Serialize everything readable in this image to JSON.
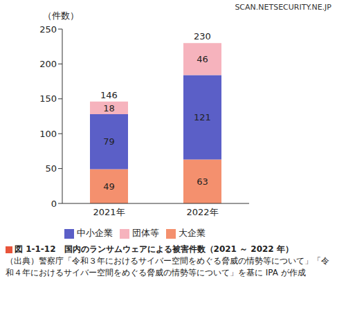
{
  "chart_data": {
    "type": "bar",
    "stacked": true,
    "title": "図 1-1-12　国内のランサムウェアによる被害件数（2021 ～ 2022 年）",
    "subtitle": "（出典）警察庁「令和３年におけるサイバー空間をめぐる脅威の情勢等について」「令和４年におけるサイバー空間をめぐる脅威の情勢等について」を基に IPA が作成",
    "annotation": "SCAN.NETSECURITY.NE.JP",
    "y_label": "（件数）",
    "categories": [
      "2021年",
      "2022年"
    ],
    "series": [
      {
        "name": "大企業",
        "color": "#f4906e",
        "values": [
          49,
          63
        ]
      },
      {
        "name": "中小企業",
        "color": "#5b5fc7",
        "values": [
          79,
          121
        ]
      },
      {
        "name": "団体等",
        "color": "#f6b3bd",
        "values": [
          18,
          46
        ]
      }
    ],
    "totals": [
      146,
      230
    ],
    "ylim": [
      0,
      250
    ],
    "yticks": [
      0,
      50,
      100,
      150,
      200,
      250
    ],
    "grid": false,
    "legend": "bottom",
    "data_labels": true
  }
}
